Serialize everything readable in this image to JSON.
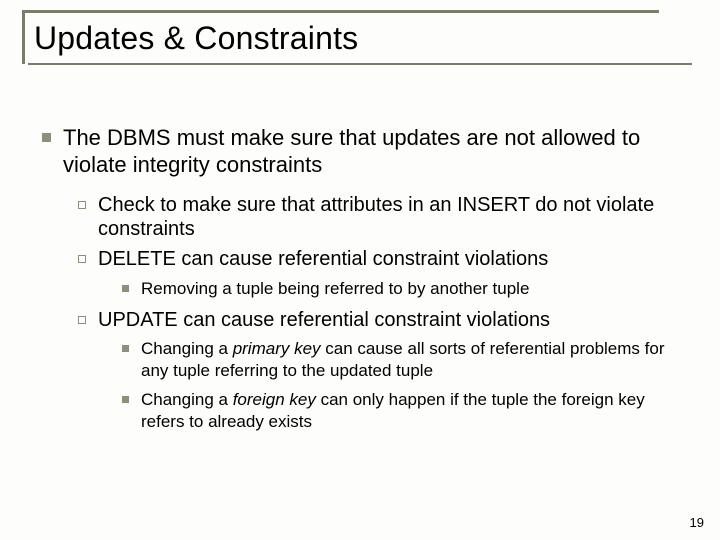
{
  "title": "Updates & Constraints",
  "main": "The DBMS must make sure that updates are not allowed to violate integrity constraints",
  "sub1": "Check to make sure that attributes in an INSERT do not violate constraints",
  "sub2": "DELETE can cause referential constraint violations",
  "sub2_1": "Removing a tuple being referred to by another tuple",
  "sub3": "UPDATE can cause referential constraint violations",
  "sub3_1_a": "Changing a ",
  "sub3_1_b": "primary key",
  "sub3_1_c": " can cause all sorts of referential problems for any tuple referring to the updated tuple",
  "sub3_2_a": "Changing a ",
  "sub3_2_b": "foreign key",
  "sub3_2_c": " can only happen if the tuple the foreign key refers to already exists",
  "pagenum": "19"
}
